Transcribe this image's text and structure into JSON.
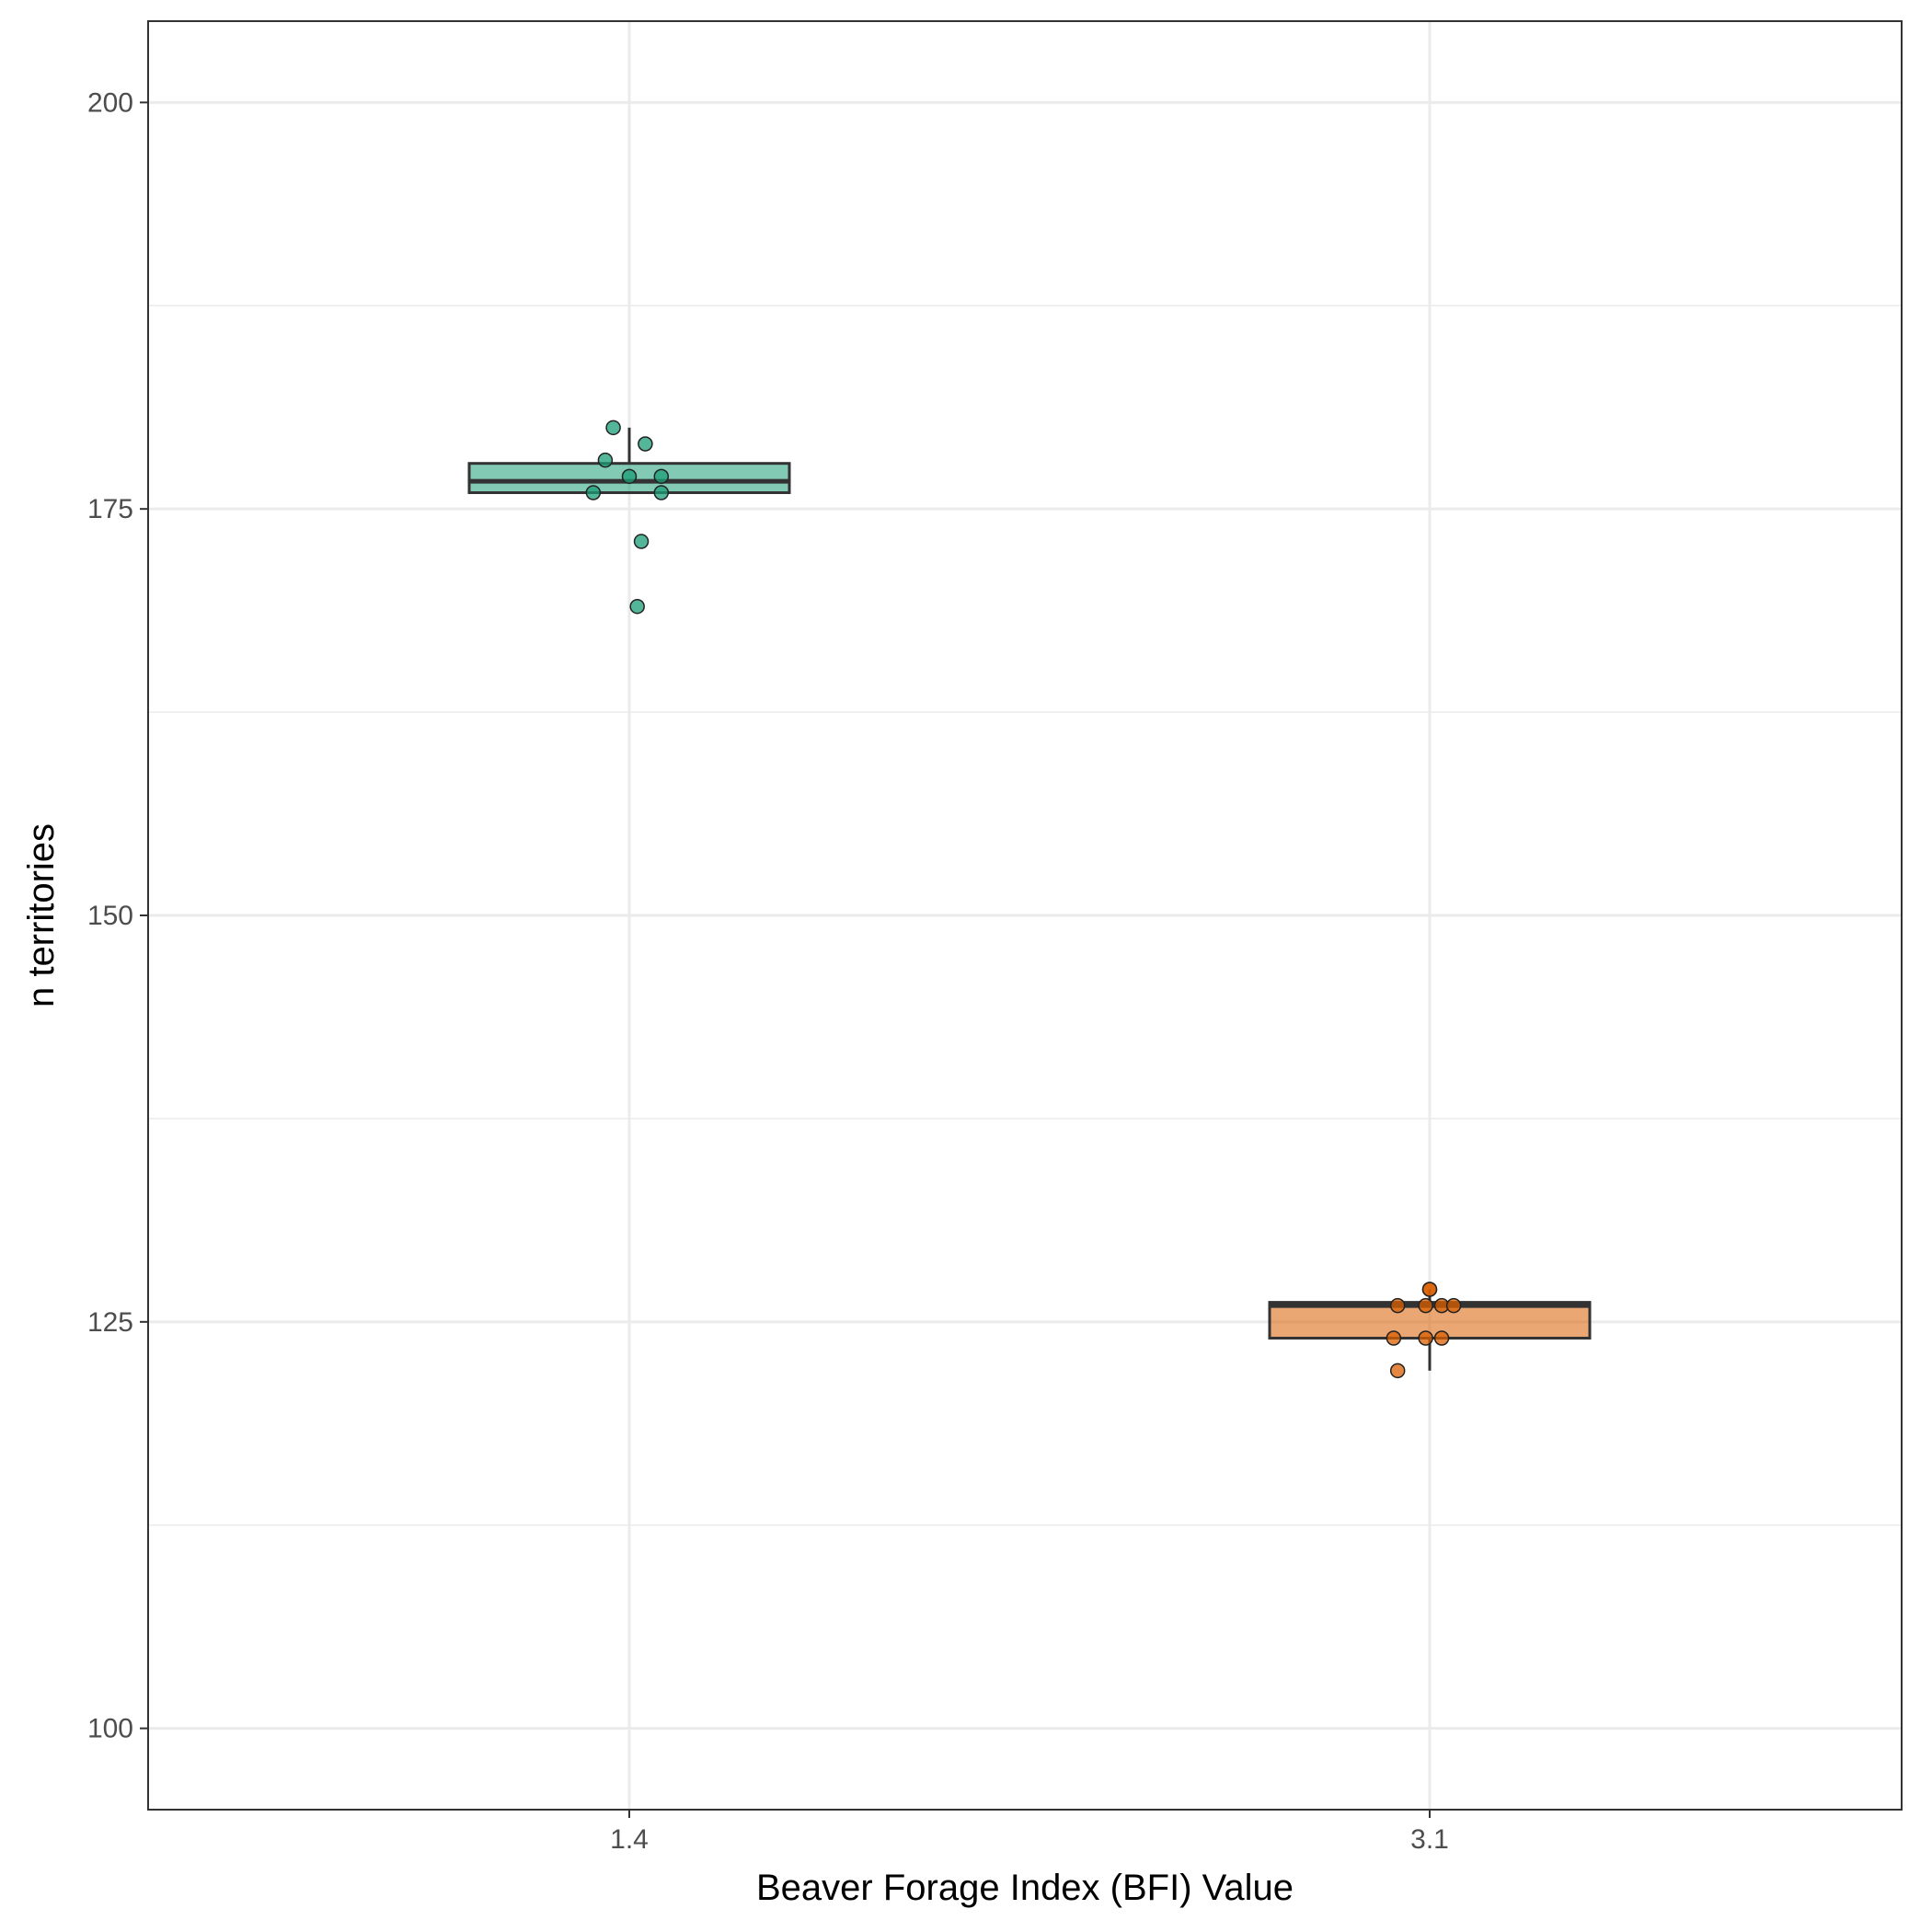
{
  "chart_data": {
    "type": "box",
    "xlabel": "Beaver Forage Index (BFI) Value",
    "ylabel": "n territories",
    "ylim": [
      95,
      205
    ],
    "yticks": [
      100,
      125,
      150,
      175,
      200
    ],
    "y_minor_ticks": [
      112.5,
      137.5,
      162.5,
      187.5
    ],
    "categories": [
      "1.4",
      "3.1"
    ],
    "grid": true,
    "legend": "none",
    "series": [
      {
        "category": "1.4",
        "color": "#1b9e77",
        "box": {
          "whisker_low": 176,
          "q1": 176,
          "median": 176.7,
          "q3": 177.8,
          "whisker_high": 180
        },
        "outliers": [
          173,
          169
        ],
        "points": [
          {
            "dx": -0.02,
            "y": 180
          },
          {
            "dx": 0.02,
            "y": 179
          },
          {
            "dx": -0.03,
            "y": 178
          },
          {
            "dx": 0.0,
            "y": 177
          },
          {
            "dx": 0.04,
            "y": 177
          },
          {
            "dx": -0.045,
            "y": 176
          },
          {
            "dx": 0.04,
            "y": 176
          },
          {
            "dx": 0.015,
            "y": 173
          },
          {
            "dx": 0.01,
            "y": 169
          }
        ]
      },
      {
        "category": "3.1",
        "color": "#d95f02",
        "box": {
          "whisker_low": 122,
          "q1": 124,
          "median": 126,
          "q3": 126.2,
          "whisker_high": 127
        },
        "outliers": [],
        "points": [
          {
            "dx": 0.0,
            "y": 127
          },
          {
            "dx": 0.0,
            "y": 127
          },
          {
            "dx": -0.04,
            "y": 126
          },
          {
            "dx": -0.005,
            "y": 126
          },
          {
            "dx": 0.015,
            "y": 126
          },
          {
            "dx": 0.03,
            "y": 126
          },
          {
            "dx": -0.045,
            "y": 124
          },
          {
            "dx": -0.005,
            "y": 124
          },
          {
            "dx": 0.015,
            "y": 124
          },
          {
            "dx": -0.04,
            "y": 122
          }
        ]
      }
    ]
  }
}
